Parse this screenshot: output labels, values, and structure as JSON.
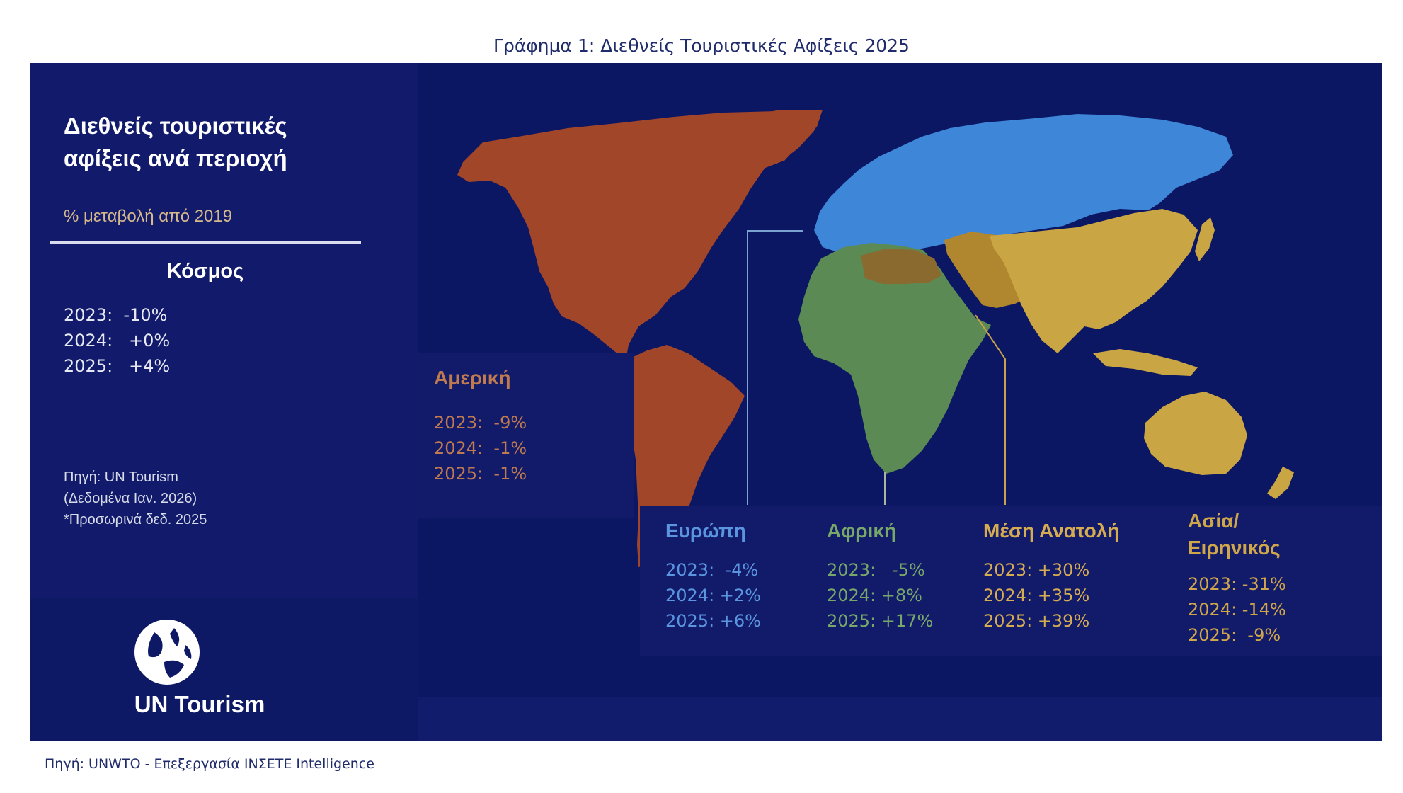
{
  "figure_caption": "Γράφημα 1: Διεθνείς Τουριστικές Αφίξεις 2025",
  "figure_source": "Πηγή: UNWTO - Επεξεργασία ΙΝΣΕΤΕ Intelligence",
  "infographic": {
    "title_line1": "Διεθνείς τουριστικές",
    "title_line2": "αφίξεις ανά περιοχή",
    "subtitle": "% μεταβολή από 2019",
    "world": {
      "label": "Κόσμος",
      "rows": [
        "2023:  -10%",
        "2024:   +0%",
        "2025:   +4%"
      ]
    },
    "note": {
      "line1": "Πηγή: UN Tourism",
      "line2": "(Δεδομένα Ιαν. 2026)",
      "line3": "*Προσωρινά δεδ. 2025"
    },
    "brand": "UN Tourism"
  },
  "regions": {
    "americas": {
      "name": "Αμερική",
      "rows": [
        "2023:  -9%",
        "2024:  -1%",
        "2025:  -1%"
      ],
      "color": "#a2462a"
    },
    "europe": {
      "name": "Ευρώπη",
      "rows": [
        "2023:  -4%",
        "2024: +2%",
        "2025: +6%"
      ],
      "color": "#3d86d8"
    },
    "africa": {
      "name": "Αφρική",
      "rows": [
        "2023:   -5%",
        "2024: +8%",
        "2025: +17%"
      ],
      "color": "#5b8a55"
    },
    "middle_east": {
      "name": "Μέση Ανατολή",
      "rows": [
        "2023: +30%",
        "2024: +35%",
        "2025: +39%"
      ],
      "color": "#b0862e"
    },
    "asia_pacific": {
      "name_line1": "Ασία/",
      "name_line2": "Ειρηνικός",
      "rows": [
        "2023: -31%",
        "2024: -14%",
        "2025:  -9%"
      ],
      "color": "#caa544"
    }
  },
  "colors": {
    "panel_bg": "#0c1763",
    "caption_text": "#1f2b6b",
    "title_text": "#ffffff",
    "subtitle_text": "#d6b98b",
    "stat_text_world": "#e6e8f2"
  }
}
